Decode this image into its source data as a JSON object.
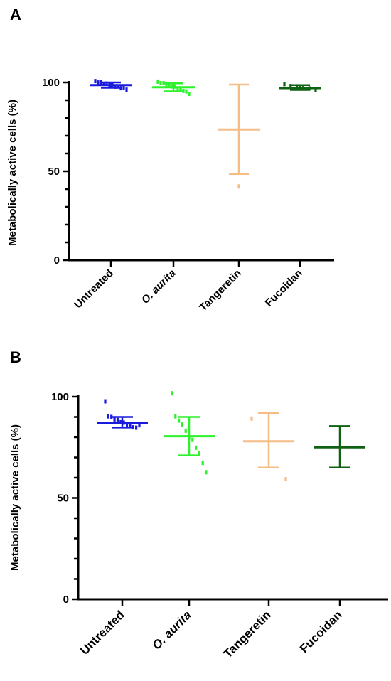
{
  "chart_data": [
    {
      "panel_label": "A",
      "type": "scatter",
      "ylabel": "Metabolically active cells  (%)",
      "ylim": [
        0,
        100
      ],
      "yticks": [
        "0",
        "50",
        "100"
      ],
      "categories": [
        "Untreated",
        "O. aurita",
        "Tangeretin",
        "Fucoidan"
      ],
      "italic_category": "O. aurita",
      "groups": [
        {
          "category": "Untreated",
          "color": "#1a1adc",
          "mean": 98.5,
          "sd_low": 97.0,
          "sd_high": 100.0,
          "points": [
            100.5,
            100.2,
            99.8,
            99.5,
            99.1,
            98.7,
            98.3,
            97.9,
            97.5,
            97.0,
            96.6,
            96.2
          ]
        },
        {
          "category": "O. aurita",
          "color": "#2cf22c",
          "mean": 97.3,
          "sd_low": 95.0,
          "sd_high": 99.5,
          "points": [
            100.2,
            99.8,
            99.4,
            99.0,
            98.5,
            98.0,
            97.5,
            96.8,
            96.2,
            95.5,
            94.7,
            93.8
          ]
        },
        {
          "category": "Tangeretin",
          "color": "#f5bc86",
          "mean": 73.5,
          "sd_low": 48.5,
          "sd_high": 98.8,
          "points": [
            41.5
          ]
        },
        {
          "category": "Fucoidan",
          "color": "#0f6212",
          "mean": 96.8,
          "sd_low": 95.8,
          "sd_high": 98.5,
          "points": [
            98.8,
            98.2,
            97.6,
            97.0,
            96.4,
            95.9
          ]
        }
      ]
    },
    {
      "panel_label": "B",
      "type": "scatter",
      "ylabel": "Metabolically active cells  (%)",
      "ylim": [
        0,
        100
      ],
      "yticks": [
        "0",
        "50",
        "100"
      ],
      "categories": [
        "Untreated",
        "O. aurita",
        "Tangeretin",
        "Fucoidan"
      ],
      "italic_category": "O. aurita",
      "groups": [
        {
          "category": "Untreated",
          "color": "#1a1adc",
          "mean": 87.2,
          "sd_low": 84.8,
          "sd_high": 90.0,
          "points": [
            97.5,
            90.5,
            89.8,
            89.0,
            88.3,
            87.6,
            87.0,
            86.4,
            85.8,
            85.1,
            84.5,
            86.1
          ]
        },
        {
          "category": "O. aurita",
          "color": "#2cf22c",
          "mean": 80.5,
          "sd_low": 71.0,
          "sd_high": 90.0,
          "points": [
            101.5,
            90.5,
            88.0,
            86.5,
            83.0,
            80.0,
            78.5,
            75.0,
            72.0,
            67.5,
            62.5
          ]
        },
        {
          "category": "Tangeretin",
          "color": "#f5bc86",
          "mean": 78.0,
          "sd_low": 65.0,
          "sd_high": 92.0,
          "points": [
            89.0,
            59.5
          ]
        },
        {
          "category": "Fucoidan",
          "color": "#0f6212",
          "mean": 75.0,
          "sd_low": 65.0,
          "sd_high": 85.5,
          "points": []
        }
      ]
    }
  ]
}
